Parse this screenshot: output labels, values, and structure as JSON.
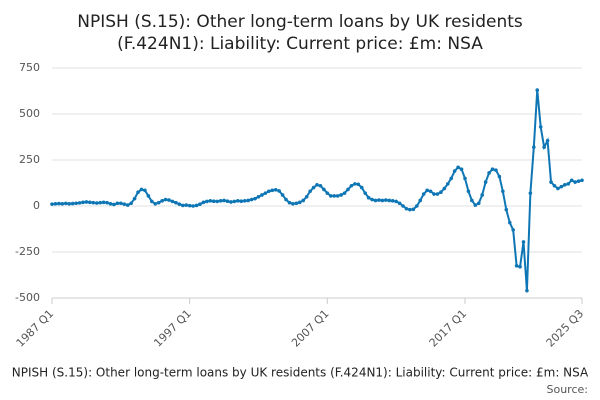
{
  "chart_data": {
    "type": "line",
    "title": [
      "NPISH (S.15): Other long-term loans by UK residents",
      "(F.424N1): Liability: Current price: £m: NSA"
    ],
    "caption": "NPISH (S.15): Other long-term loans by UK residents (F.424N1): Liability: Current price: £m: NSA",
    "source": "Source:",
    "categories": [
      "1987 Q1",
      null,
      null,
      null,
      null,
      null,
      null,
      null,
      null,
      null,
      null,
      null,
      null,
      null,
      null,
      null,
      null,
      null,
      null,
      null,
      null,
      null,
      null,
      null,
      null,
      null,
      null,
      null,
      null,
      null,
      null,
      null,
      null,
      null,
      null,
      null,
      null,
      null,
      null,
      null,
      "1997 Q1",
      null,
      null,
      null,
      null,
      null,
      null,
      null,
      null,
      null,
      null,
      null,
      null,
      null,
      null,
      null,
      null,
      null,
      null,
      null,
      null,
      null,
      null,
      null,
      null,
      null,
      null,
      null,
      null,
      null,
      null,
      null,
      null,
      null,
      null,
      null,
      null,
      null,
      null,
      null,
      "2007 Q1",
      null,
      null,
      null,
      null,
      null,
      null,
      null,
      null,
      null,
      null,
      null,
      null,
      null,
      null,
      null,
      null,
      null,
      null,
      null,
      null,
      null,
      null,
      null,
      null,
      null,
      null,
      null,
      null,
      null,
      null,
      null,
      null,
      null,
      null,
      null,
      null,
      null,
      null,
      null,
      "2017 Q1",
      null,
      null,
      null,
      null,
      null,
      null,
      null,
      null,
      null,
      null,
      null,
      null,
      null,
      null,
      null,
      null,
      null,
      null,
      null,
      null,
      null,
      null,
      null,
      null,
      null,
      null,
      null,
      null,
      null,
      null,
      null,
      null,
      null,
      "2025 Q3"
    ],
    "values": [
      10,
      12,
      13,
      12,
      14,
      12,
      13,
      15,
      17,
      20,
      22,
      20,
      18,
      16,
      18,
      20,
      18,
      12,
      8,
      15,
      15,
      10,
      5,
      15,
      40,
      75,
      90,
      85,
      55,
      25,
      12,
      18,
      28,
      35,
      32,
      25,
      18,
      10,
      3,
      5,
      2,
      0,
      3,
      10,
      20,
      25,
      28,
      26,
      25,
      28,
      30,
      26,
      22,
      25,
      28,
      26,
      28,
      30,
      35,
      40,
      50,
      60,
      70,
      80,
      85,
      88,
      82,
      60,
      35,
      18,
      12,
      15,
      20,
      30,
      50,
      80,
      100,
      115,
      110,
      90,
      70,
      55,
      55,
      55,
      60,
      70,
      90,
      110,
      120,
      118,
      100,
      70,
      45,
      35,
      30,
      32,
      30,
      32,
      30,
      28,
      25,
      15,
      0,
      -15,
      -20,
      -18,
      0,
      30,
      65,
      85,
      80,
      65,
      65,
      75,
      95,
      120,
      150,
      190,
      210,
      200,
      150,
      80,
      30,
      5,
      15,
      60,
      130,
      180,
      200,
      195,
      160,
      80,
      -20,
      -90,
      -130,
      -325,
      -330,
      -195,
      -460,
      70,
      320,
      630,
      430,
      320,
      355,
      130,
      110,
      95,
      105,
      115,
      120,
      140,
      130,
      135,
      140
    ],
    "color": "#0e76b5",
    "ylim": [
      -500,
      750
    ],
    "yticks": [
      -500,
      -250,
      0,
      250,
      500,
      750
    ],
    "grid": true
  }
}
